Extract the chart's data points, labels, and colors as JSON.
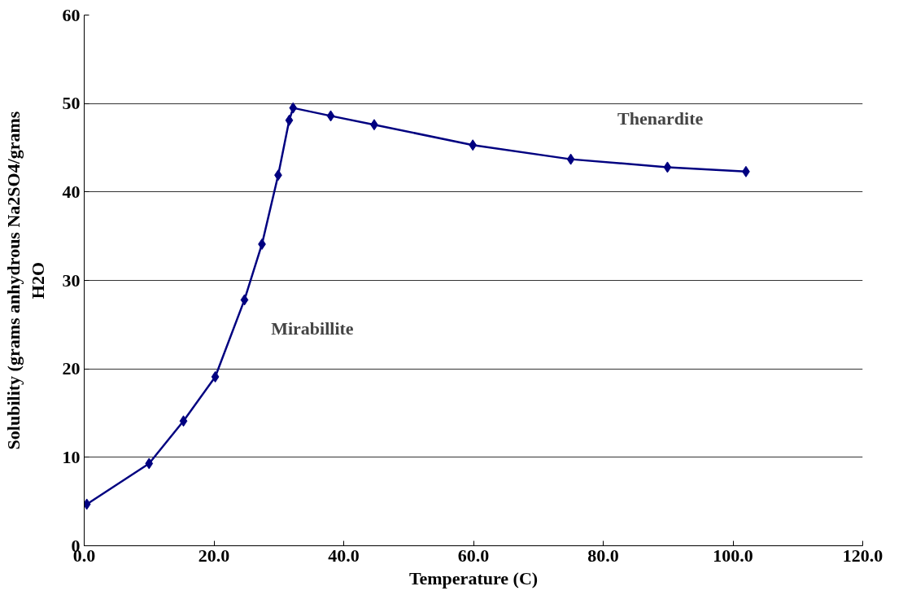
{
  "chart_data": {
    "type": "line",
    "xlabel": "Temperature (C)",
    "ylabel": "Solubility (grams anhydrous Na2SO4/grams H2O",
    "series": [
      {
        "color": "#000080",
        "x": [
          0.4,
          10.0,
          15.3,
          20.2,
          24.7,
          27.4,
          29.9,
          31.6,
          32.2,
          38.0,
          44.7,
          59.9,
          75.0,
          89.9,
          102.0
        ],
        "values": [
          4.7,
          9.3,
          14.1,
          19.1,
          27.8,
          34.1,
          41.9,
          48.1,
          49.5,
          48.6,
          47.6,
          45.3,
          43.7,
          42.8,
          42.3
        ]
      }
    ],
    "marker": "diamond",
    "line_style": "solid",
    "grid": "y",
    "xlim": [
      0,
      120
    ],
    "xticks": [
      {
        "value": 0,
        "label": "0.0"
      },
      {
        "value": 20,
        "label": "20.0"
      },
      {
        "value": 40,
        "label": "40.0"
      },
      {
        "value": 60,
        "label": "60.0"
      },
      {
        "value": 80,
        "label": "80.0"
      },
      {
        "value": 100,
        "label": "100.0"
      },
      {
        "value": 120,
        "label": "120.0"
      }
    ],
    "ylim": [
      0,
      60
    ],
    "yticks": [
      0,
      10,
      20,
      30,
      40,
      50,
      60
    ],
    "annotations": [
      "Thenardite",
      "Mirabillite"
    ]
  }
}
